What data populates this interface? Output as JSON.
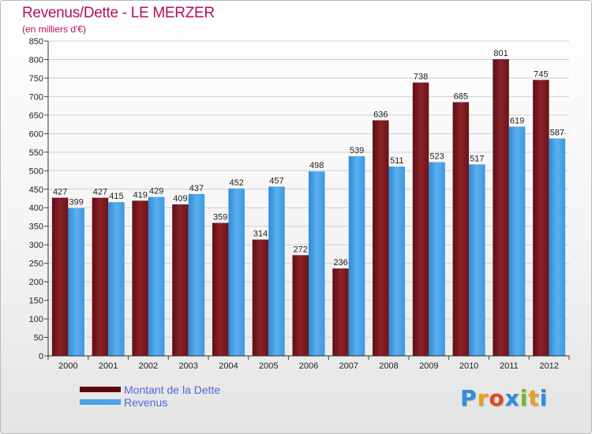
{
  "header": {
    "title": "Revenus/Dette - LE MERZER",
    "subtitle": "(en milliers d'€)"
  },
  "chart_data": {
    "type": "bar",
    "title": "Revenus/Dette - LE MERZER",
    "ylabel": "(en milliers d'€)",
    "ylim": [
      0,
      850
    ],
    "ytick_step": 50,
    "grid": true,
    "categories": [
      "2000",
      "2001",
      "2002",
      "2003",
      "2004",
      "2005",
      "2006",
      "2007",
      "2008",
      "2009",
      "2010",
      "2011",
      "2012"
    ],
    "series": [
      {
        "name": "Montant de la Dette",
        "color": "#7d1a22",
        "values": [
          427,
          427,
          419,
          409,
          359,
          314,
          272,
          236,
          636,
          738,
          685,
          801,
          745
        ]
      },
      {
        "name": "Revenus",
        "color": "#4aa3e8",
        "values": [
          399,
          415,
          429,
          437,
          452,
          457,
          498,
          539,
          511,
          523,
          517,
          619,
          587
        ]
      }
    ]
  },
  "legend": {
    "items": [
      {
        "label": "Montant de la Dette",
        "color": "#5a0b10"
      },
      {
        "label": "Revenus",
        "color": "#4aa3e8"
      }
    ]
  },
  "logo": {
    "letters": [
      "P",
      "r",
      "o",
      "x",
      "i",
      "t",
      "i"
    ],
    "colors": [
      "#2f8fd8",
      "#e8a020",
      "#e04a18",
      "#2f8fd8",
      "#76b82a",
      "#e8a020",
      "#2f8fd8"
    ]
  }
}
